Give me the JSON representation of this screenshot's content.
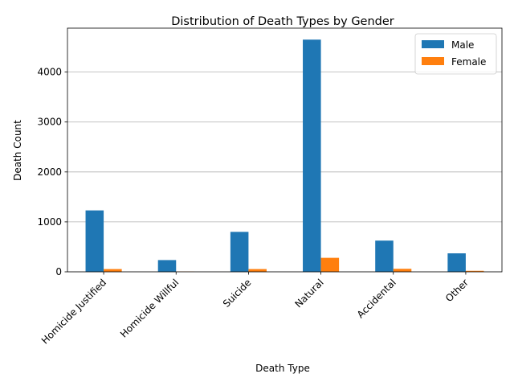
{
  "chart_data": {
    "type": "bar",
    "title": "Distribution of Death Types by Gender",
    "xlabel": "Death Type",
    "ylabel": "Death Count",
    "categories": [
      "Homicide Justified",
      "Homicide Willful",
      "Suicide",
      "Natural",
      "Accidental",
      "Other"
    ],
    "series": [
      {
        "name": "Male",
        "color": "#1f77b4",
        "values": [
          1230,
          235,
          800,
          4650,
          625,
          370
        ]
      },
      {
        "name": "Female",
        "color": "#ff7f0e",
        "values": [
          55,
          5,
          55,
          280,
          60,
          20
        ]
      }
    ],
    "ylim": [
      0,
      4880
    ],
    "yticks": [
      0,
      1000,
      2000,
      3000,
      4000
    ],
    "grid": "y",
    "legend": "top-right"
  }
}
